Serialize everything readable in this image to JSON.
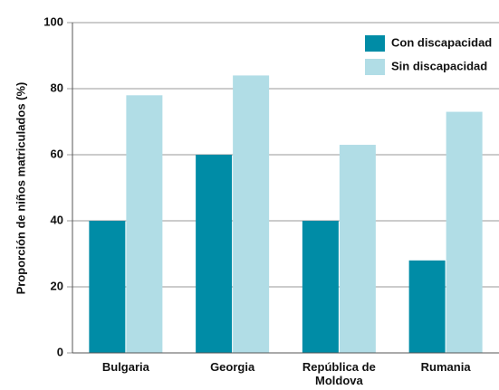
{
  "chart_data": {
    "type": "bar",
    "y_label": "Proporción de niños matriculados (%)",
    "categories": [
      "Bulgaria",
      "Georgia",
      "República de Moldova",
      "Rumania"
    ],
    "series": [
      {
        "name": "Con discapacidad",
        "color": "#008ca6",
        "values": [
          40,
          60,
          40,
          28
        ]
      },
      {
        "name": "Sin discapacidad",
        "color": "#b1dde6",
        "values": [
          78,
          84,
          63,
          73
        ]
      }
    ],
    "ylim": [
      0,
      100
    ],
    "yticks": [
      0,
      20,
      40,
      60,
      80,
      100
    ],
    "grid": true,
    "legend": "top-right"
  }
}
